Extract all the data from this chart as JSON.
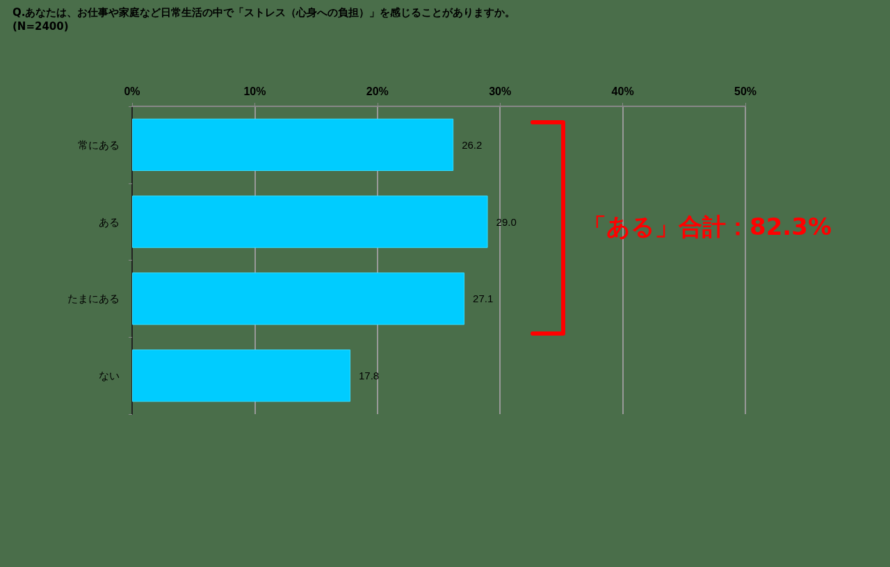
{
  "chart_data": {
    "type": "bar",
    "orientation": "horizontal",
    "title": "Q.あなたは、お仕事や家庭など日常生活の中で「ストレス（心身への負担）」を感じることがありますか。",
    "subtitle": "(N=2400)",
    "categories": [
      "常にある",
      "ある",
      "たまにある",
      "ない"
    ],
    "values": [
      26.2,
      29.0,
      27.1,
      17.8
    ],
    "value_labels": [
      "26.2",
      "29.0",
      "27.1",
      "17.8"
    ],
    "color": "#00ccff",
    "xlim": [
      0,
      50
    ],
    "xticks": [
      {
        "value": 0,
        "label": "0%"
      },
      {
        "value": 10,
        "label": "10%"
      },
      {
        "value": 20,
        "label": "20%"
      },
      {
        "value": 30,
        "label": "30%"
      },
      {
        "value": 40,
        "label": "40%"
      },
      {
        "value": 50,
        "label": "50%"
      }
    ],
    "grid": "x",
    "annotations": [
      "「ある」合計：82.3%"
    ]
  }
}
